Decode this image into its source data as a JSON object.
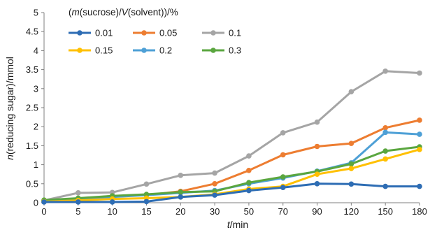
{
  "chart_data": {
    "type": "line",
    "categories": [
      "0",
      "5",
      "10",
      "15",
      "20",
      "30",
      "50",
      "70",
      "90",
      "120",
      "150",
      "180"
    ],
    "ylim": [
      0,
      5
    ],
    "yticks": [
      "0",
      "0.5",
      "1",
      "1.5",
      "2",
      "2.5",
      "3",
      "3.5",
      "4",
      "4.5",
      "5"
    ],
    "xlabel_var": "t",
    "xlabel_unit": "/min",
    "ylabel_var": "n",
    "ylabel_rest": "(reducing sugar)/mmol",
    "legend": {
      "title_open": "(",
      "title_m": "m",
      "title_mid": "(sucrose)/",
      "title_v": "V",
      "title_close": "(solvent))/%",
      "placement": "top-left"
    },
    "grid": false,
    "series": [
      {
        "name": "0.01",
        "color": "#2e6db4",
        "values": [
          0.02,
          0.02,
          0.02,
          0.03,
          0.15,
          0.2,
          0.32,
          0.4,
          0.5,
          0.49,
          0.43,
          0.43
        ]
      },
      {
        "name": "0.05",
        "color": "#ed7d31",
        "values": [
          0.05,
          0.1,
          0.18,
          0.2,
          0.3,
          0.5,
          0.85,
          1.26,
          1.48,
          1.56,
          1.97,
          2.17
        ]
      },
      {
        "name": "0.1",
        "color": "#a5a5a5",
        "values": [
          0.06,
          0.26,
          0.27,
          0.49,
          0.72,
          0.78,
          1.23,
          1.84,
          2.12,
          2.92,
          3.46,
          3.41
        ]
      },
      {
        "name": "0.15",
        "color": "#ffc000",
        "values": [
          0.03,
          0.06,
          0.1,
          0.12,
          0.15,
          0.22,
          0.36,
          0.43,
          0.75,
          0.9,
          1.15,
          1.4
        ]
      },
      {
        "name": "0.2",
        "color": "#4ea0d6",
        "values": [
          0.05,
          0.1,
          0.15,
          0.2,
          0.26,
          0.32,
          0.5,
          0.65,
          0.83,
          1.05,
          1.85,
          1.8
        ]
      },
      {
        "name": "0.3",
        "color": "#5aa63f",
        "values": [
          0.07,
          0.12,
          0.18,
          0.22,
          0.28,
          0.3,
          0.53,
          0.68,
          0.82,
          1.02,
          1.36,
          1.47
        ]
      }
    ]
  }
}
